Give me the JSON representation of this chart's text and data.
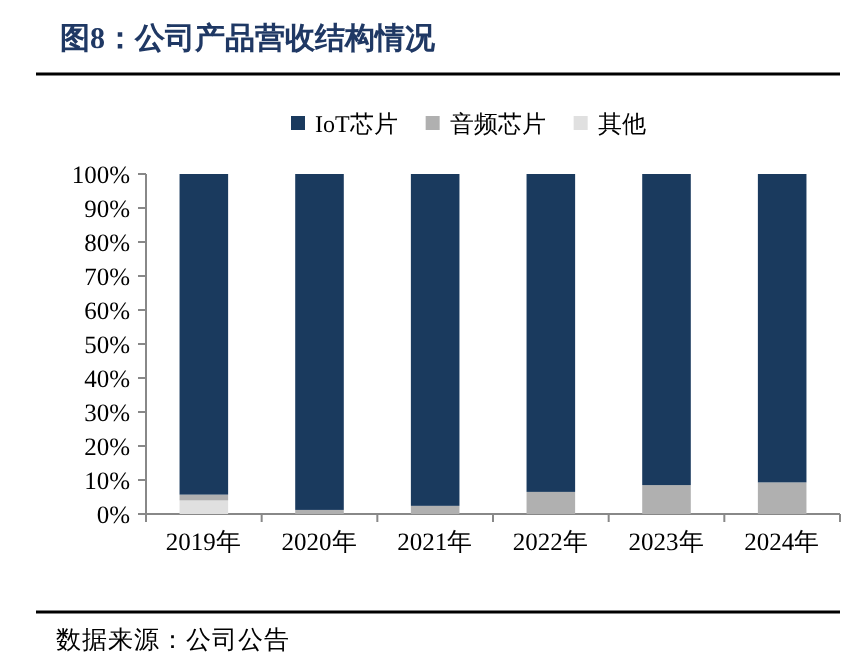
{
  "chart_data": {
    "type": "bar",
    "title": "图8：公司产品营收结构情况",
    "stacked": true,
    "legend": "top",
    "grid": false,
    "categories": [
      "2019年",
      "2020年",
      "2021年",
      "2022年",
      "2023年",
      "2024年"
    ],
    "series": [
      {
        "name": "其他",
        "color": "#e0e0e0",
        "values": [
          4,
          0,
          0,
          0,
          null,
          0
        ]
      },
      {
        "name": "音频芯片",
        "color": "#b0b0b0",
        "values": [
          1.7,
          1.2,
          2.4,
          6.5,
          8.5,
          9.3
        ]
      },
      {
        "name": "IoT芯片",
        "color": "#1a3a5e",
        "values": [
          94.3,
          98.8,
          97.6,
          93.5,
          91.5,
          90.7
        ]
      }
    ],
    "ylim": [
      0,
      100
    ],
    "yticks": [
      {
        "value": 0,
        "label": "0%"
      },
      {
        "value": 10,
        "label": "10%"
      },
      {
        "value": 20,
        "label": "20%"
      },
      {
        "value": 30,
        "label": "30%"
      },
      {
        "value": 40,
        "label": "40%"
      },
      {
        "value": 50,
        "label": "50%"
      },
      {
        "value": 60,
        "label": "60%"
      },
      {
        "value": 70,
        "label": "70%"
      },
      {
        "value": 80,
        "label": "80%"
      },
      {
        "value": 90,
        "label": "90%"
      },
      {
        "value": 100,
        "label": "100%"
      }
    ],
    "annotations": [
      "数据来源：公司公告"
    ]
  }
}
